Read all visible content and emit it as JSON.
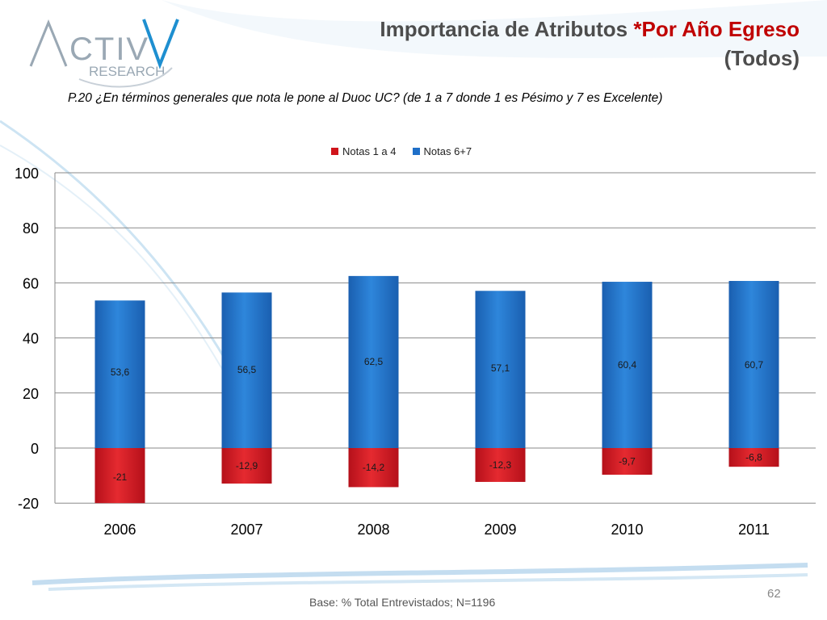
{
  "header": {
    "title_main": "Importancia de Atributos ",
    "title_accent": "*Por Año Egreso",
    "title_sub": "(Todos)"
  },
  "logo": {
    "wordmark": "ACTIVA",
    "subword": "RESEARCH"
  },
  "question": "P.20  ¿En términos generales que nota le pone al Duoc UC? (de 1 a 7 donde 1 es Pésimo y 7 es Excelente)",
  "footer": {
    "base": "Base: % Total Entrevistados; N=1196",
    "page": "62"
  },
  "colors": {
    "red": "#d0141b",
    "blue": "#1f6fc8",
    "title_accent": "#c00000"
  },
  "chart_data": {
    "type": "bar",
    "stacked": true,
    "categories": [
      "2006",
      "2007",
      "2008",
      "2009",
      "2010",
      "2011"
    ],
    "series": [
      {
        "name": "Notas 1 a 4",
        "values": [
          -21,
          -12.9,
          -14.2,
          -12.3,
          -9.7,
          -6.8
        ],
        "labels": [
          "-21",
          "-12,9",
          "-14,2",
          "-12,3",
          "-9,7",
          "-6,8"
        ]
      },
      {
        "name": "Notas 6+7",
        "values": [
          53.6,
          56.5,
          62.5,
          57.1,
          60.4,
          60.7
        ],
        "labels": [
          "53,6",
          "56,5",
          "62,5",
          "57,1",
          "60,4",
          "60,7"
        ]
      }
    ],
    "yticks": [
      "100",
      "80",
      "60",
      "40",
      "20",
      "0",
      "-20"
    ],
    "ylim": [
      -20,
      100
    ],
    "grid": true,
    "legend": "top-center"
  }
}
